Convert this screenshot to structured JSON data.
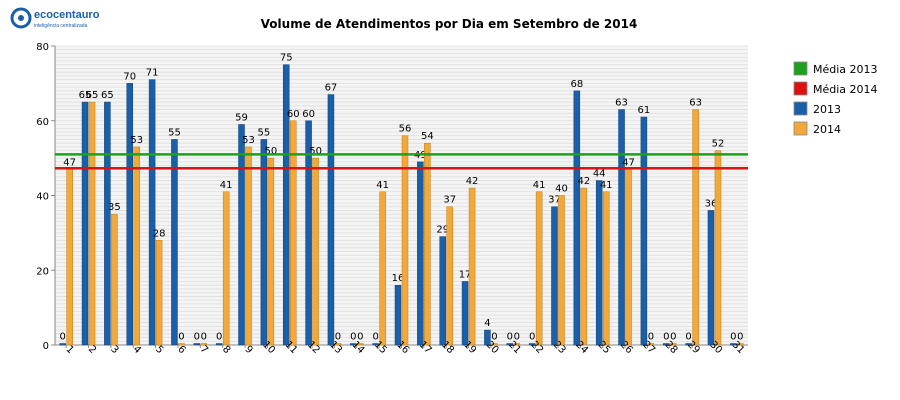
{
  "brand": {
    "name": "ecocentauro",
    "tagline": "inteligência centralizada",
    "logo_color": "#1a5fa8"
  },
  "chart_data": {
    "type": "bar",
    "title": "Volume de Atendimentos por Dia em Setembro de 2014",
    "xlabel": "",
    "ylabel": "",
    "ylim": [
      0,
      80
    ],
    "yticks": [
      0,
      20,
      40,
      60,
      80
    ],
    "grid": true,
    "legend_position": "right",
    "categories": [
      "1",
      "2",
      "3",
      "4",
      "5",
      "6",
      "7",
      "8",
      "9",
      "10",
      "11",
      "12",
      "13",
      "14",
      "15",
      "16",
      "17",
      "18",
      "19",
      "20",
      "21",
      "22",
      "23",
      "24",
      "25",
      "26",
      "27",
      "28",
      "29",
      "30",
      "31"
    ],
    "series": [
      {
        "name": "2013",
        "color": "#1a5fa8",
        "values": [
          0,
          65,
          65,
          70,
          71,
          55,
          0,
          0,
          59,
          55,
          75,
          60,
          67,
          0,
          0,
          16,
          49,
          29,
          17,
          4,
          0,
          0,
          37,
          68,
          44,
          63,
          61,
          0,
          0,
          36,
          0
        ]
      },
      {
        "name": "2014",
        "color": "#f2a93b",
        "values": [
          47,
          65,
          35,
          53,
          28,
          0,
          0,
          41,
          53,
          50,
          60,
          50,
          0,
          0,
          41,
          56,
          54,
          37,
          42,
          0,
          0,
          41,
          40,
          42,
          41,
          47,
          0,
          0,
          63,
          52,
          0
        ]
      }
    ],
    "lines": [
      {
        "name": "Média 2013",
        "color": "#1ea01e",
        "value": 51
      },
      {
        "name": "Média 2014",
        "color": "#dd1111",
        "value": 47.3
      }
    ],
    "legend": [
      "Média 2013",
      "Média 2014",
      "2013",
      "2014"
    ]
  }
}
